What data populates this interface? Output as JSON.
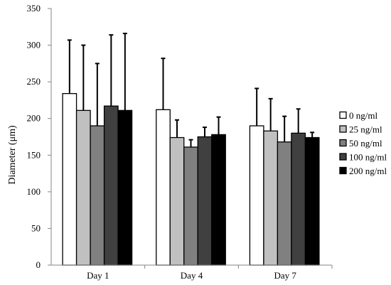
{
  "chart_data": {
    "type": "bar",
    "title": "",
    "xlabel": "",
    "ylabel": "Diameter (μm)",
    "ylim": [
      0,
      350
    ],
    "yticks": [
      0,
      50,
      100,
      150,
      200,
      250,
      300,
      350
    ],
    "categories": [
      "Day 1",
      "Day 4",
      "Day 7"
    ],
    "legend_position": "right",
    "grid": false,
    "series": [
      {
        "name": "0 ng/ml",
        "color": "#ffffff",
        "values": [
          234,
          212,
          190
        ],
        "errors": [
          73,
          70,
          51
        ]
      },
      {
        "name": "25 ng/ml",
        "color": "#c0c0c0",
        "values": [
          211,
          174,
          183
        ],
        "errors": [
          89,
          24,
          44
        ]
      },
      {
        "name": "50 ng/ml",
        "color": "#808080",
        "values": [
          190,
          161,
          168
        ],
        "errors": [
          85,
          10,
          35
        ]
      },
      {
        "name": "100 ng/ml",
        "color": "#404040",
        "values": [
          217,
          175,
          180
        ],
        "errors": [
          97,
          13,
          33
        ]
      },
      {
        "name": "200 ng/ml",
        "color": "#000000",
        "values": [
          211,
          178,
          174
        ],
        "errors": [
          105,
          24,
          7
        ]
      }
    ]
  }
}
